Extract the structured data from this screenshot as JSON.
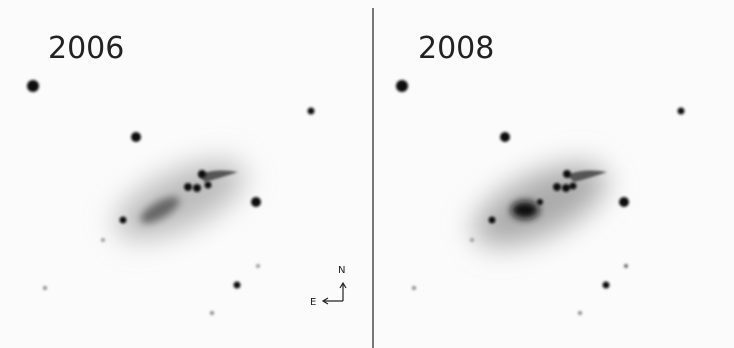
{
  "panels": [
    {
      "label": "2006"
    },
    {
      "label": "2008"
    }
  ],
  "compass": {
    "north": "N",
    "east": "E"
  }
}
